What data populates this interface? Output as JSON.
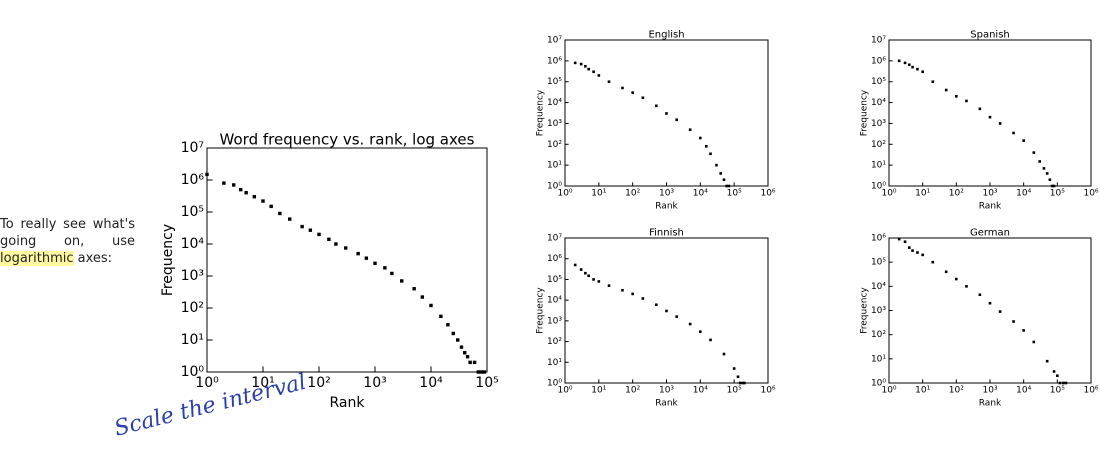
{
  "slide_text": {
    "before": "To really see what's going on, use",
    "highlight": "logarithmic",
    "after": "axes:"
  },
  "handwritten_note": "Scale the interval",
  "chart_data": [
    {
      "type": "scatter",
      "title": "Word frequency vs. rank, log axes",
      "x_label": "Rank",
      "y_label": "Frequency",
      "xscale": "log",
      "yscale": "log",
      "color": "#000000",
      "xlim": [
        1,
        100000
      ],
      "ylim": [
        1,
        10000000
      ],
      "xticks": [
        {
          "value": 1,
          "label": "10⁰"
        },
        {
          "value": 10,
          "label": "10¹"
        },
        {
          "value": 100,
          "label": "10²"
        },
        {
          "value": 1000,
          "label": "10³"
        },
        {
          "value": 10000,
          "label": "10⁴"
        },
        {
          "value": 100000,
          "label": "10⁵"
        }
      ],
      "yticks": [
        {
          "value": 1,
          "label": "10⁰"
        },
        {
          "value": 10,
          "label": "10¹"
        },
        {
          "value": 100,
          "label": "10²"
        },
        {
          "value": 1000,
          "label": "10³"
        },
        {
          "value": 10000,
          "label": "10⁴"
        },
        {
          "value": 100000,
          "label": "10⁵"
        },
        {
          "value": 1000000,
          "label": "10⁶"
        },
        {
          "value": 10000000,
          "label": "10⁷"
        }
      ],
      "x": [
        1,
        2,
        3,
        4,
        5,
        7,
        10,
        14,
        20,
        30,
        50,
        70,
        100,
        150,
        200,
        300,
        500,
        700,
        1000,
        1500,
        2000,
        3000,
        5000,
        7000,
        10000,
        15000,
        20000,
        25000,
        30000,
        35000,
        40000,
        45000,
        50000,
        60000,
        70000,
        80000,
        90000
      ],
      "values": [
        1500000,
        800000,
        700000,
        500000,
        400000,
        300000,
        220000,
        150000,
        90000,
        60000,
        35000,
        27000,
        20000,
        14000,
        10000,
        7500,
        5000,
        3600,
        2500,
        1800,
        1200,
        700,
        400,
        220,
        120,
        55,
        30,
        16,
        10,
        6,
        4,
        3,
        2,
        2,
        1,
        1,
        1
      ]
    },
    {
      "type": "scatter",
      "title": "English",
      "x_label": "Rank",
      "y_label": "Frequency",
      "xscale": "log",
      "yscale": "log",
      "color": "#000000",
      "xlim": [
        1,
        1000000
      ],
      "ylim": [
        1,
        10000000
      ],
      "xticks": [
        {
          "value": 1,
          "label": "10⁰"
        },
        {
          "value": 10,
          "label": "10¹"
        },
        {
          "value": 100,
          "label": "10²"
        },
        {
          "value": 1000,
          "label": "10³"
        },
        {
          "value": 10000,
          "label": "10⁴"
        },
        {
          "value": 100000,
          "label": "10⁵"
        },
        {
          "value": 1000000,
          "label": "10⁶"
        }
      ],
      "yticks": [
        {
          "value": 1,
          "label": "10⁰"
        },
        {
          "value": 10,
          "label": "10¹"
        },
        {
          "value": 100,
          "label": "10²"
        },
        {
          "value": 1000,
          "label": "10³"
        },
        {
          "value": 10000,
          "label": "10⁴"
        },
        {
          "value": 100000,
          "label": "10⁵"
        },
        {
          "value": 1000000,
          "label": "10⁶"
        },
        {
          "value": 10000000,
          "label": "10⁷"
        }
      ],
      "x": [
        2,
        3,
        4,
        5,
        7,
        10,
        20,
        50,
        100,
        200,
        500,
        1000,
        2000,
        5000,
        10000,
        15000,
        20000,
        30000,
        40000,
        50000,
        60000,
        70000
      ],
      "values": [
        800000,
        700000,
        550000,
        400000,
        300000,
        200000,
        100000,
        50000,
        30000,
        17000,
        7000,
        3000,
        1500,
        500,
        200,
        80,
        35,
        10,
        4,
        2,
        1,
        1
      ]
    },
    {
      "type": "scatter",
      "title": "Spanish",
      "x_label": "Rank",
      "y_label": "Frequency",
      "xscale": "log",
      "yscale": "log",
      "color": "#000000",
      "xlim": [
        1,
        1000000
      ],
      "ylim": [
        1,
        10000000
      ],
      "xticks": [
        {
          "value": 1,
          "label": "10⁰"
        },
        {
          "value": 10,
          "label": "10¹"
        },
        {
          "value": 100,
          "label": "10²"
        },
        {
          "value": 1000,
          "label": "10³"
        },
        {
          "value": 10000,
          "label": "10⁴"
        },
        {
          "value": 100000,
          "label": "10⁵"
        },
        {
          "value": 1000000,
          "label": "10⁶"
        }
      ],
      "yticks": [
        {
          "value": 1,
          "label": "10⁰"
        },
        {
          "value": 10,
          "label": "10¹"
        },
        {
          "value": 100,
          "label": "10²"
        },
        {
          "value": 1000,
          "label": "10³"
        },
        {
          "value": 10000,
          "label": "10⁴"
        },
        {
          "value": 100000,
          "label": "10⁵"
        },
        {
          "value": 1000000,
          "label": "10⁶"
        },
        {
          "value": 10000000,
          "label": "10⁷"
        }
      ],
      "x": [
        2,
        3,
        4,
        5,
        7,
        10,
        20,
        50,
        100,
        200,
        500,
        1000,
        2000,
        5000,
        10000,
        20000,
        30000,
        40000,
        50000,
        60000,
        70000,
        80000
      ],
      "values": [
        1000000,
        800000,
        650000,
        500000,
        400000,
        300000,
        100000,
        40000,
        20000,
        12000,
        5000,
        2000,
        1000,
        350,
        150,
        40,
        15,
        7,
        4,
        2,
        1,
        1
      ]
    },
    {
      "type": "scatter",
      "title": "Finnish",
      "x_label": "Rank",
      "y_label": "Frequency",
      "xscale": "log",
      "yscale": "log",
      "color": "#000000",
      "xlim": [
        1,
        1000000
      ],
      "ylim": [
        1,
        10000000
      ],
      "xticks": [
        {
          "value": 1,
          "label": "10⁰"
        },
        {
          "value": 10,
          "label": "10¹"
        },
        {
          "value": 100,
          "label": "10²"
        },
        {
          "value": 1000,
          "label": "10³"
        },
        {
          "value": 10000,
          "label": "10⁴"
        },
        {
          "value": 100000,
          "label": "10⁵"
        },
        {
          "value": 1000000,
          "label": "10⁶"
        }
      ],
      "yticks": [
        {
          "value": 1,
          "label": "10⁰"
        },
        {
          "value": 10,
          "label": "10¹"
        },
        {
          "value": 100,
          "label": "10²"
        },
        {
          "value": 1000,
          "label": "10³"
        },
        {
          "value": 10000,
          "label": "10⁴"
        },
        {
          "value": 100000,
          "label": "10⁵"
        },
        {
          "value": 1000000,
          "label": "10⁶"
        },
        {
          "value": 10000000,
          "label": "10⁷"
        }
      ],
      "x": [
        2,
        3,
        4,
        5,
        7,
        10,
        20,
        50,
        100,
        200,
        500,
        1000,
        2000,
        5000,
        10000,
        20000,
        50000,
        100000,
        130000,
        150000,
        180000,
        200000
      ],
      "values": [
        500000,
        300000,
        200000,
        150000,
        100000,
        80000,
        50000,
        30000,
        20000,
        12000,
        6000,
        3000,
        1600,
        700,
        300,
        120,
        25,
        5,
        2,
        1,
        1,
        1
      ]
    },
    {
      "type": "scatter",
      "title": "German",
      "x_label": "Rank",
      "y_label": "Frequency",
      "xscale": "log",
      "yscale": "log",
      "color": "#000000",
      "xlim": [
        1,
        1000000
      ],
      "ylim": [
        1,
        1000000
      ],
      "xticks": [
        {
          "value": 1,
          "label": "10⁰"
        },
        {
          "value": 10,
          "label": "10¹"
        },
        {
          "value": 100,
          "label": "10²"
        },
        {
          "value": 1000,
          "label": "10³"
        },
        {
          "value": 10000,
          "label": "10⁴"
        },
        {
          "value": 100000,
          "label": "10⁵"
        },
        {
          "value": 1000000,
          "label": "10⁶"
        }
      ],
      "yticks": [
        {
          "value": 1,
          "label": "10⁰"
        },
        {
          "value": 10,
          "label": "10¹"
        },
        {
          "value": 100,
          "label": "10²"
        },
        {
          "value": 1000,
          "label": "10³"
        },
        {
          "value": 10000,
          "label": "10⁴"
        },
        {
          "value": 100000,
          "label": "10⁵"
        },
        {
          "value": 1000000,
          "label": "10⁶"
        }
      ],
      "x": [
        2,
        3,
        4,
        5,
        7,
        10,
        20,
        50,
        100,
        200,
        500,
        1000,
        2000,
        5000,
        10000,
        20000,
        50000,
        80000,
        100000,
        120000,
        150000,
        180000
      ],
      "values": [
        900000,
        700000,
        400000,
        300000,
        250000,
        200000,
        100000,
        40000,
        20000,
        10000,
        4500,
        2000,
        900,
        350,
        150,
        50,
        8,
        3,
        2,
        1,
        1,
        1
      ]
    }
  ]
}
